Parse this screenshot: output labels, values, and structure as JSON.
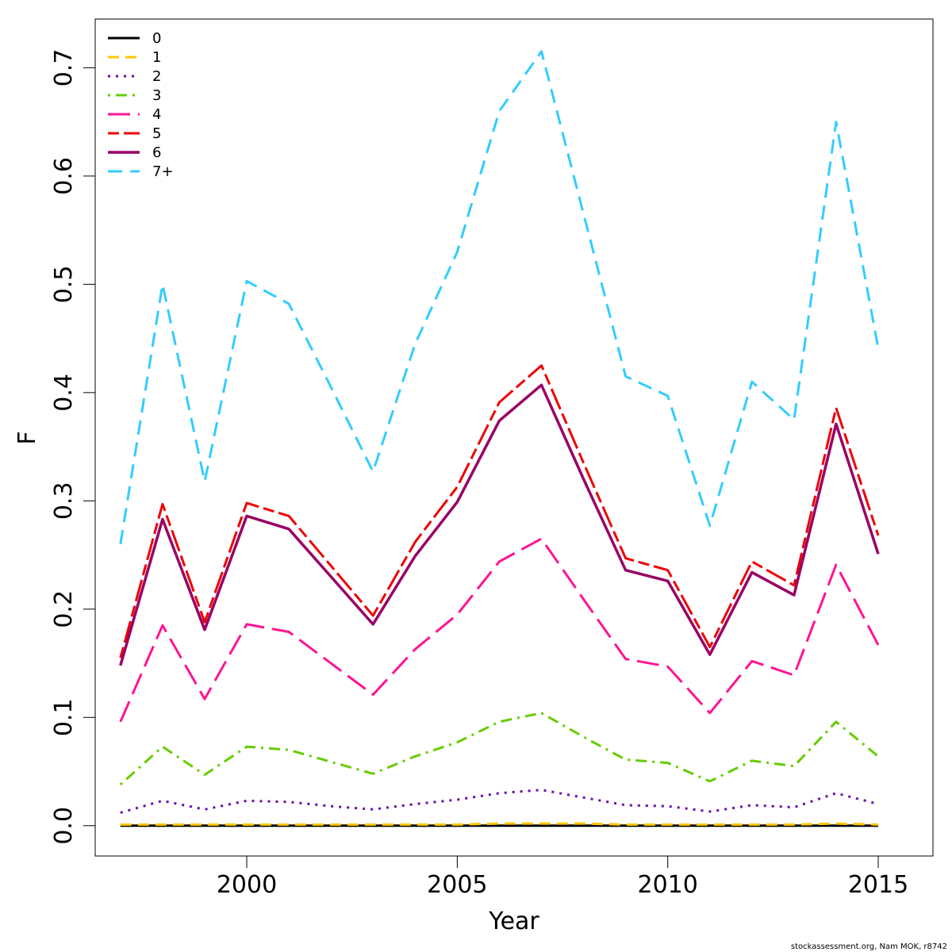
{
  "chart_data": {
    "type": "line",
    "xlabel": "Year",
    "ylabel": "F",
    "xlim": [
      1996.4,
      2016.3
    ],
    "ylim": [
      -0.028,
      0.745
    ],
    "xticks": [
      "2000",
      "2005",
      "2010",
      "2015"
    ],
    "yticks": [
      "0.0",
      "0.1",
      "0.2",
      "0.3",
      "0.4",
      "0.5",
      "0.6",
      "0.7"
    ],
    "grid": false,
    "legend_position": "top-left",
    "x": [
      1997,
      1998,
      1999,
      2000,
      2001,
      2002,
      2003,
      2004,
      2005,
      2006,
      2007,
      2008,
      2009,
      2010,
      2011,
      2012,
      2013,
      2014,
      2015
    ],
    "series": [
      {
        "name": "0",
        "color": "#000000",
        "values": [
          0.0,
          0.0,
          0.0,
          0.0,
          0.0,
          0.0,
          0.0,
          0.0,
          0.0,
          0.0,
          0.0,
          0.0,
          0.0,
          0.0,
          0.0,
          0.0,
          0.0,
          0.0,
          0.0
        ]
      },
      {
        "name": "1",
        "color": "#ffc700",
        "values": [
          0.001,
          0.001,
          0.001,
          0.001,
          0.001,
          0.001,
          0.001,
          0.001,
          0.001,
          0.002,
          0.002,
          0.002,
          0.001,
          0.001,
          0.001,
          0.001,
          0.001,
          0.002,
          0.001
        ]
      },
      {
        "name": "2",
        "color": "#6a0dad",
        "values": [
          0.012,
          0.023,
          0.015,
          0.023,
          0.022,
          0.018,
          0.015,
          0.02,
          0.024,
          0.03,
          0.033,
          0.026,
          0.019,
          0.018,
          0.013,
          0.019,
          0.017,
          0.03,
          0.02
        ]
      },
      {
        "name": "3",
        "color": "#66cc00",
        "values": [
          0.038,
          0.073,
          0.047,
          0.073,
          0.07,
          0.059,
          0.048,
          0.064,
          0.077,
          0.096,
          0.104,
          0.082,
          0.061,
          0.058,
          0.041,
          0.06,
          0.055,
          0.096,
          0.064
        ]
      },
      {
        "name": "4",
        "color": "#ff1493",
        "values": [
          0.096,
          0.185,
          0.117,
          0.186,
          0.179,
          0.15,
          0.121,
          0.163,
          0.195,
          0.244,
          0.265,
          0.209,
          0.154,
          0.147,
          0.104,
          0.152,
          0.139,
          0.241,
          0.167
        ]
      },
      {
        "name": "5",
        "color": "#ee0000",
        "values": [
          0.155,
          0.297,
          0.188,
          0.298,
          0.286,
          0.24,
          0.194,
          0.262,
          0.313,
          0.391,
          0.425,
          0.335,
          0.247,
          0.236,
          0.165,
          0.244,
          0.222,
          0.386,
          0.268
        ]
      },
      {
        "name": "6",
        "color": "#990066",
        "values": [
          0.148,
          0.283,
          0.181,
          0.286,
          0.274,
          0.23,
          0.186,
          0.249,
          0.299,
          0.374,
          0.407,
          0.32,
          0.236,
          0.226,
          0.158,
          0.234,
          0.213,
          0.371,
          0.251
        ]
      },
      {
        "name": "7+",
        "color": "#33ccff",
        "values": [
          0.26,
          0.5,
          0.318,
          0.503,
          0.482,
          0.405,
          0.327,
          0.445,
          0.53,
          0.66,
          0.715,
          0.565,
          0.415,
          0.397,
          0.277,
          0.41,
          0.375,
          0.65,
          0.441
        ]
      }
    ]
  },
  "credit": "stockassessment.org, Nam  MOK, r8742"
}
